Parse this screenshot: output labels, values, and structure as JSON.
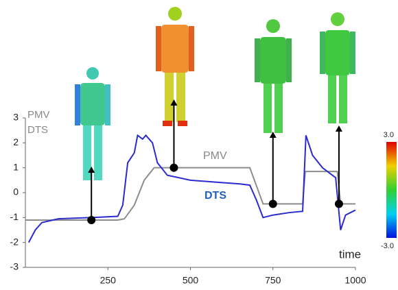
{
  "chart_data": {
    "type": "line",
    "x_label": "time",
    "xlim": [
      0,
      1000
    ],
    "xticks": [
      250,
      500,
      750,
      1000
    ],
    "ylim": [
      -3,
      3
    ],
    "yticks": [
      -3,
      -2,
      -1,
      0,
      1,
      2,
      3
    ],
    "series": [
      {
        "name": "PMV",
        "color": "#8c8c8c",
        "x": [
          0,
          280,
          300,
          330,
          360,
          390,
          680,
          720,
          840,
          848,
          945,
          955,
          1000
        ],
        "values": [
          -1.1,
          -1.1,
          -1.05,
          -0.5,
          0.5,
          1.0,
          1.0,
          -0.45,
          -0.45,
          0.85,
          0.85,
          -0.45,
          -0.45
        ]
      },
      {
        "name": "DTS",
        "color": "#2a2ad0",
        "x": [
          10,
          30,
          50,
          100,
          200,
          280,
          295,
          310,
          330,
          340,
          355,
          365,
          385,
          400,
          430,
          500,
          600,
          650,
          680,
          700,
          720,
          750,
          800,
          840,
          850,
          870,
          900,
          930,
          940,
          955,
          970,
          1000
        ],
        "values": [
          -2.0,
          -1.5,
          -1.2,
          -1.05,
          -1.0,
          -0.95,
          -0.5,
          1.2,
          1.6,
          2.3,
          2.15,
          2.3,
          2.0,
          1.2,
          0.7,
          0.5,
          0.4,
          0.35,
          0.3,
          -0.3,
          -1.0,
          -0.9,
          -0.8,
          -0.75,
          2.3,
          1.5,
          1.0,
          0.7,
          0.6,
          -1.5,
          -0.9,
          -0.7
        ]
      }
    ],
    "annotation_points": {
      "x": [
        200,
        450,
        750,
        950
      ],
      "values": [
        -1.1,
        1.0,
        -0.45,
        -0.45
      ]
    },
    "colorbar": {
      "ticks": [
        {
          "value": 3,
          "label": "3.0"
        },
        {
          "value": -3,
          "label": "-3.0"
        }
      ]
    }
  }
}
